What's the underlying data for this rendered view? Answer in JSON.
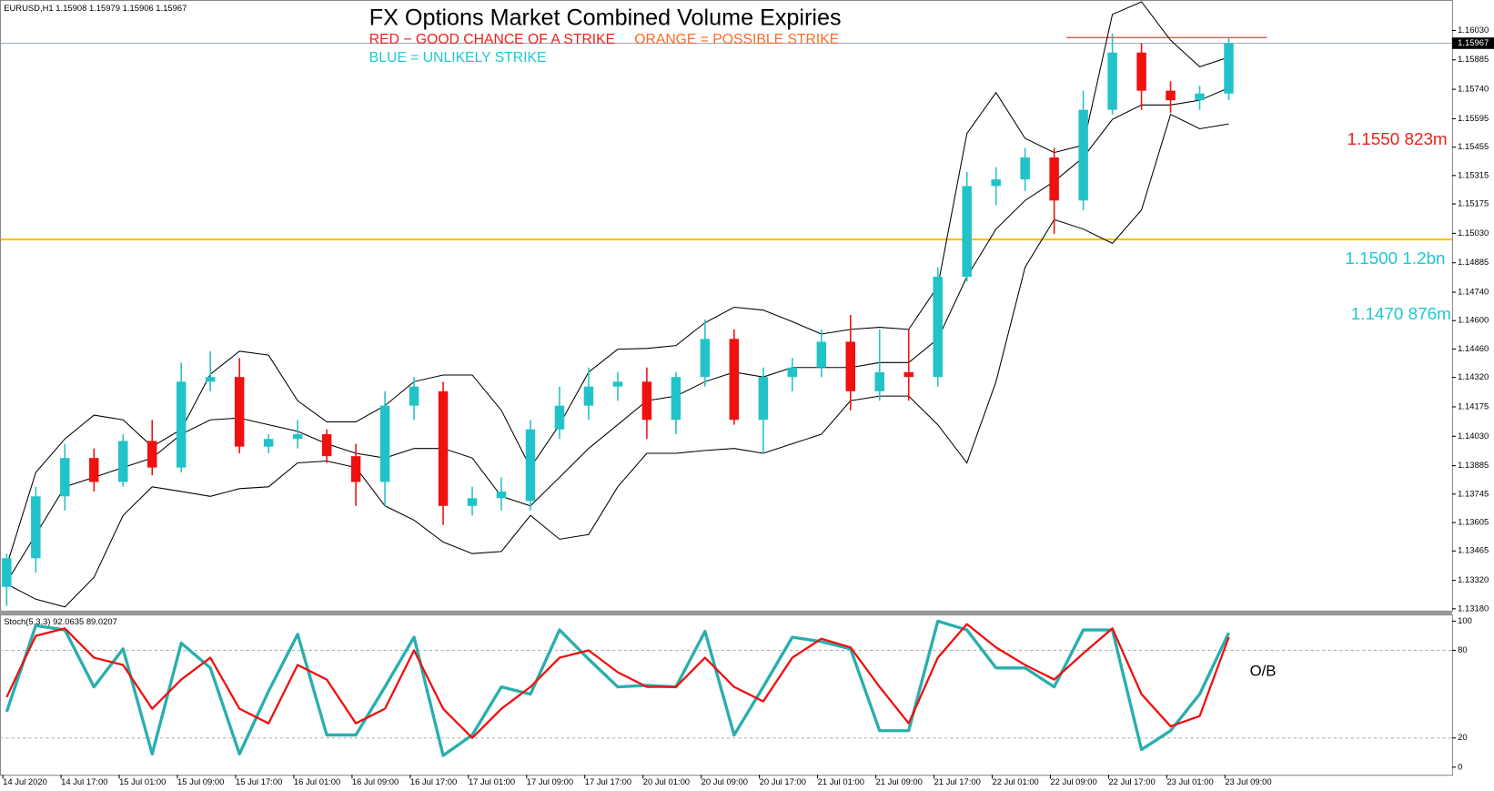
{
  "chart_data": {
    "type": "candlestick",
    "header": "EURUSD,H1  1.15908 1.15979 1.15906 1.15967",
    "title": "FX Options Market Combined Volume Expiries",
    "annotations": [
      {
        "text": "RED − GOOD CHANCE OF A STRIKE",
        "color": "#f0201a"
      },
      {
        "text": "ORANGE = POSSIBLE STRIKE",
        "color": "#ff6a20"
      },
      {
        "text": "BLUE = UNLIKELY STRIKE",
        "color": "#1ec8d2"
      },
      {
        "text": "1.1550 823m",
        "color": "#f0201a"
      },
      {
        "text": "1.1500 1.2bn",
        "color": "#1ec8d2"
      },
      {
        "text": "1.1470 876m",
        "color": "#1ec8d2"
      }
    ],
    "bull_color": "#22c3c8",
    "bear_color": "#f01010",
    "band_color": "#000000",
    "current_price": 1.15967,
    "levels": [
      {
        "value": 1.15,
        "color": "#ffc000"
      },
      {
        "value": 1.15995,
        "color": "#e04040"
      }
    ],
    "xtick_labels": [
      "14 Jul 2020",
      "14 Jul 17:00",
      "15 Jul 01:00",
      "15 Jul 09:00",
      "15 Jul 17:00",
      "16 Jul 01:00",
      "16 Jul 09:00",
      "16 Jul 17:00",
      "17 Jul 01:00",
      "17 Jul 09:00",
      "17 Jul 17:00",
      "20 Jul 01:00",
      "20 Jul 09:00",
      "20 Jul 17:00",
      "21 Jul 01:00",
      "21 Jul 09:00",
      "21 Jul 17:00",
      "22 Jul 01:00",
      "22 Jul 09:00",
      "22 Jul 17:00",
      "23 Jul 01:00",
      "23 Jul 09:00"
    ],
    "open": [
      1.13288,
      1.13429,
      1.13734,
      1.13923,
      1.13805,
      1.14007,
      1.13876,
      1.14299,
      1.14322,
      1.13979,
      1.14017,
      1.1404,
      1.13932,
      1.13805,
      1.14181,
      1.14252,
      1.13687,
      1.13725,
      1.13711,
      1.14064,
      1.14181,
      1.14275,
      1.14299,
      1.14111,
      1.14322,
      1.1451,
      1.14111,
      1.14322,
      1.14369,
      1.14496,
      1.14252,
      1.14346,
      1.14322,
      1.14816,
      1.15263,
      1.15296,
      1.15404,
      1.15192,
      1.15639,
      1.15921,
      1.15733,
      1.15686,
      1.15719
    ],
    "high": [
      1.13452,
      1.13781,
      1.13993,
      1.1397,
      1.1404,
      1.14111,
      1.14393,
      1.14449,
      1.14416,
      1.1404,
      1.14111,
      1.14064,
      1.13993,
      1.14252,
      1.14322,
      1.14299,
      1.13781,
      1.13828,
      1.14111,
      1.14275,
      1.14369,
      1.14346,
      1.14369,
      1.14346,
      1.14605,
      1.14557,
      1.14369,
      1.14416,
      1.14557,
      1.14628,
      1.14557,
      1.14557,
      1.14863,
      1.15333,
      1.15357,
      1.15451,
      1.15451,
      1.15733,
      1.16015,
      1.15968,
      1.1578,
      1.15757,
      1.15992
    ],
    "low": [
      1.13194,
      1.13358,
      1.13664,
      1.13758,
      1.13781,
      1.13838,
      1.13852,
      1.14252,
      1.13946,
      1.13946,
      1.1397,
      1.13899,
      1.13687,
      1.13687,
      1.14111,
      1.13593,
      1.1364,
      1.13664,
      1.13664,
      1.14017,
      1.14111,
      1.14205,
      1.14017,
      1.1404,
      1.14275,
      1.14087,
      1.13946,
      1.14252,
      1.14322,
      1.14158,
      1.14205,
      1.14205,
      1.14275,
      1.14793,
      1.15169,
      1.15239,
      1.15028,
      1.15145,
      1.15616,
      1.15639,
      1.15625,
      1.15639,
      1.15686
    ],
    "close": [
      1.13429,
      1.13734,
      1.13923,
      1.13805,
      1.14007,
      1.13876,
      1.14299,
      1.14322,
      1.13979,
      1.14017,
      1.1404,
      1.13932,
      1.13805,
      1.14181,
      1.14275,
      1.13687,
      1.13725,
      1.13758,
      1.14064,
      1.14181,
      1.14275,
      1.14299,
      1.14111,
      1.14322,
      1.1451,
      1.14111,
      1.14322,
      1.14369,
      1.14496,
      1.14252,
      1.14346,
      1.14322,
      1.14816,
      1.15263,
      1.15296,
      1.15404,
      1.15192,
      1.15639,
      1.15921,
      1.15733,
      1.15686,
      1.15719,
      1.15967
    ],
    "bands": [
      {
        "values": [
          1.13391,
          1.13852,
          1.14017,
          1.14134,
          1.14111,
          1.13979,
          1.14064,
          1.14336,
          1.14449,
          1.1443,
          1.14205,
          1.14101,
          1.14101,
          1.14181,
          1.14299,
          1.14332,
          1.14332,
          1.14158,
          1.13876,
          1.14087,
          1.14346,
          1.14459,
          1.14463,
          1.14477,
          1.1459,
          1.14666,
          1.14652,
          1.14595,
          1.14534,
          1.14557,
          1.14567,
          1.14557,
          1.14769,
          1.15522,
          1.15724,
          1.15498,
          1.15428,
          1.15465,
          1.16109,
          1.16171,
          1.15982,
          1.15851,
          1.15898
        ]
      },
      {
        "values": [
          1.13311,
          1.13546,
          1.13781,
          1.13828,
          1.13876,
          1.13923,
          1.1404,
          1.14111,
          1.1412,
          1.14087,
          1.14054,
          1.13993,
          1.13946,
          1.13923,
          1.1397,
          1.1397,
          1.13923,
          1.13734,
          1.13687,
          1.13828,
          1.1397,
          1.14087,
          1.14205,
          1.14228,
          1.14299,
          1.14346,
          1.14322,
          1.14369,
          1.14369,
          1.14369,
          1.14393,
          1.14393,
          1.1451,
          1.14816,
          1.15051,
          1.15192,
          1.15286,
          1.15404,
          1.15592,
          1.15663,
          1.15663,
          1.15686,
          1.15747
        ]
      },
      {
        "values": [
          1.13302,
          1.13227,
          1.13189,
          1.13335,
          1.1364,
          1.13781,
          1.13758,
          1.13734,
          1.13772,
          1.13781,
          1.13899,
          1.13908,
          1.13876,
          1.13687,
          1.13617,
          1.13509,
          1.13452,
          1.13462,
          1.1364,
          1.13523,
          1.13546,
          1.13781,
          1.13946,
          1.13946,
          1.1396,
          1.1397,
          1.13946,
          1.13993,
          1.1404,
          1.14205,
          1.14228,
          1.14228,
          1.14087,
          1.13899,
          1.14299,
          1.14863,
          1.15098,
          1.15051,
          1.14981,
          1.15145,
          1.15616,
          1.15545,
          1.15569
        ]
      }
    ],
    "ylim": [
      1.13166,
      1.1618
    ],
    "yticks": [
      {
        "value": 1.1603,
        "label": "1.16030"
      },
      1.15885,
      {
        "value": 1.1574,
        "label": "1.15740"
      },
      1.15595,
      1.15455,
      1.15315,
      1.15175,
      {
        "value": 1.1503,
        "label": "1.15030"
      },
      1.14885,
      {
        "value": 1.1474,
        "label": "1.14740"
      },
      {
        "value": 1.146,
        "label": "1.14600"
      },
      {
        "value": 1.1446,
        "label": "1.14460"
      },
      {
        "value": 1.1432,
        "label": "1.14320"
      },
      1.14175,
      {
        "value": 1.1403,
        "label": "1.14030"
      },
      1.13885,
      1.13745,
      1.13605,
      1.13465,
      {
        "value": 1.1332,
        "label": "1.13320"
      },
      {
        "value": 1.1318,
        "label": "1.13180"
      }
    ],
    "oscillator": {
      "label": "Stoch(5,3,3) 92.0635 89.0207",
      "note": "O/B",
      "ylim": [
        0,
        100
      ],
      "yticks": [
        0,
        20,
        80,
        100
      ],
      "levels": [
        20,
        80
      ],
      "series": [
        {
          "color": "#2aaeae",
          "values": [
            38,
            97,
            94,
            55,
            81,
            9,
            85,
            68,
            9,
            52,
            91,
            22,
            22,
            55,
            89,
            8,
            22,
            55,
            50,
            94,
            74,
            55,
            56,
            55,
            93,
            22,
            55,
            89,
            86,
            81,
            25,
            25,
            100,
            94,
            68,
            68,
            55,
            94,
            94,
            12,
            25,
            50,
            92
          ]
        },
        {
          "color": "#f01010",
          "values": [
            48,
            90,
            95,
            75,
            70,
            40,
            60,
            75,
            40,
            30,
            70,
            60,
            30,
            40,
            80,
            40,
            20,
            40,
            55,
            75,
            80,
            65,
            55,
            55,
            75,
            55,
            45,
            75,
            88,
            82,
            55,
            30,
            75,
            98,
            82,
            70,
            60,
            78,
            95,
            50,
            28,
            35,
            89
          ]
        }
      ]
    }
  }
}
